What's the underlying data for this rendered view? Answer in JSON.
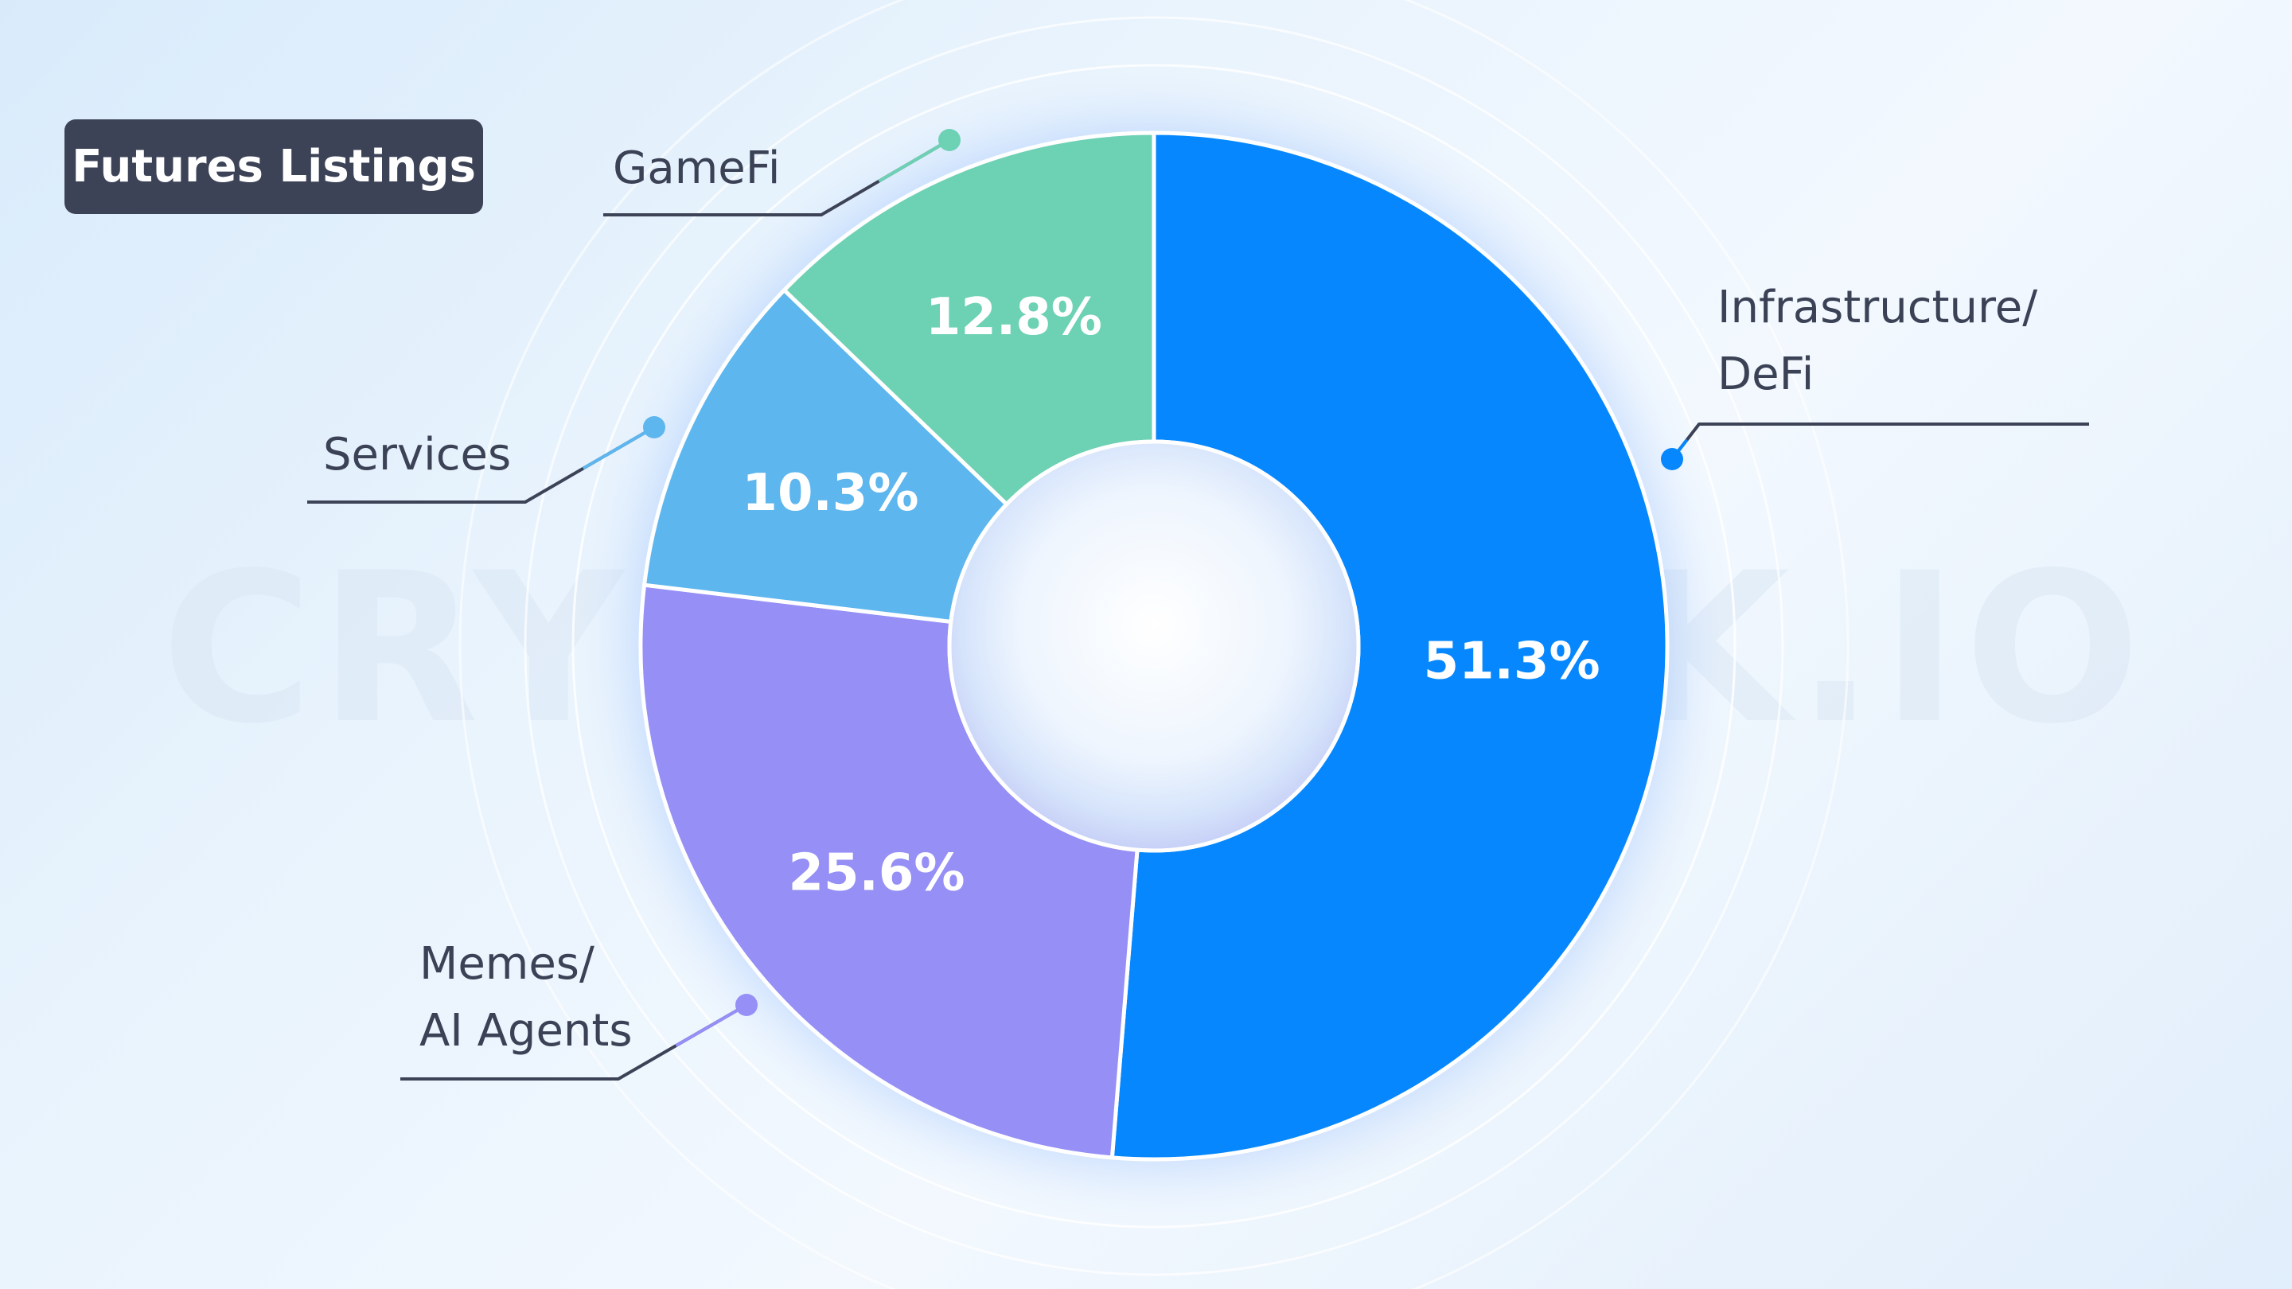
{
  "title": "Futures Listings",
  "watermark": "CRYPTORANK.IO",
  "chart_data": {
    "type": "donut",
    "title": "Futures Listings",
    "unit": "%",
    "categories": [
      "Infrastructure/ DeFi",
      "Memes/ AI Agents",
      "Services",
      "GameFi"
    ],
    "series": [
      {
        "values": [
          51.3,
          25.6,
          10.3,
          12.8
        ],
        "labels": [
          "51.3%",
          "25.6%",
          "10.3%",
          "12.8%"
        ]
      }
    ],
    "colors": [
      "#0787fd",
      "#958ff6",
      "#5db6ee",
      "#6dd1b4"
    ],
    "legend": "callout labels around the ring"
  },
  "callouts": [
    {
      "lines": [
        "Infrastructure/",
        "DeFi"
      ]
    },
    {
      "lines": [
        "Memes/",
        "AI Agents"
      ]
    },
    {
      "lines": [
        "Services"
      ]
    },
    {
      "lines": [
        "GameFi"
      ]
    }
  ]
}
